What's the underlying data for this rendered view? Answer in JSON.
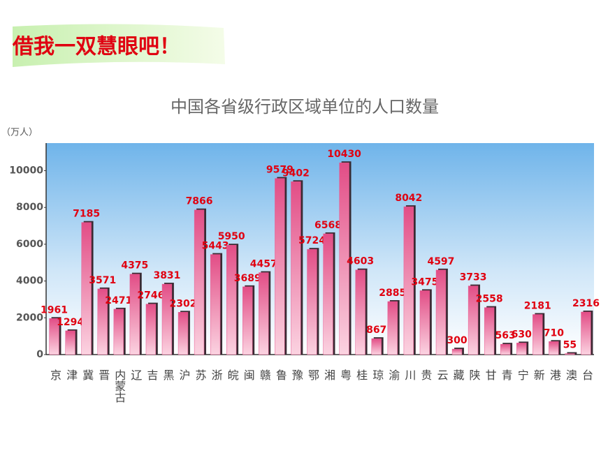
{
  "header": "借我一双慧眼吧！",
  "chart_data": {
    "type": "bar",
    "title": "中国各省级行政区域单位的人口数量",
    "y_label": "（万人）",
    "categories": [
      "京",
      "津",
      "冀",
      "晋",
      "内蒙古",
      "辽",
      "吉",
      "黑",
      "沪",
      "苏",
      "浙",
      "皖",
      "闽",
      "赣",
      "鲁",
      "豫",
      "鄂",
      "湘",
      "粤",
      "桂",
      "琼",
      "渝",
      "川",
      "贵",
      "云",
      "藏",
      "陕",
      "甘",
      "青",
      "宁",
      "新",
      "港",
      "澳",
      "台"
    ],
    "values": [
      1961,
      1294,
      7185,
      3571,
      2471,
      4375,
      2746,
      3831,
      2302,
      7866,
      5443,
      5950,
      3689,
      4457,
      9579,
      9402,
      5724,
      6568,
      10430,
      4603,
      867,
      2885,
      8042,
      3475,
      4597,
      300,
      3733,
      2558,
      563,
      630,
      2181,
      710,
      55,
      2316
    ],
    "color": "#e8578e",
    "ylim": [
      0,
      11500
    ],
    "yticks": [
      0,
      2000,
      4000,
      6000,
      8000,
      10000
    ],
    "grid": false
  }
}
